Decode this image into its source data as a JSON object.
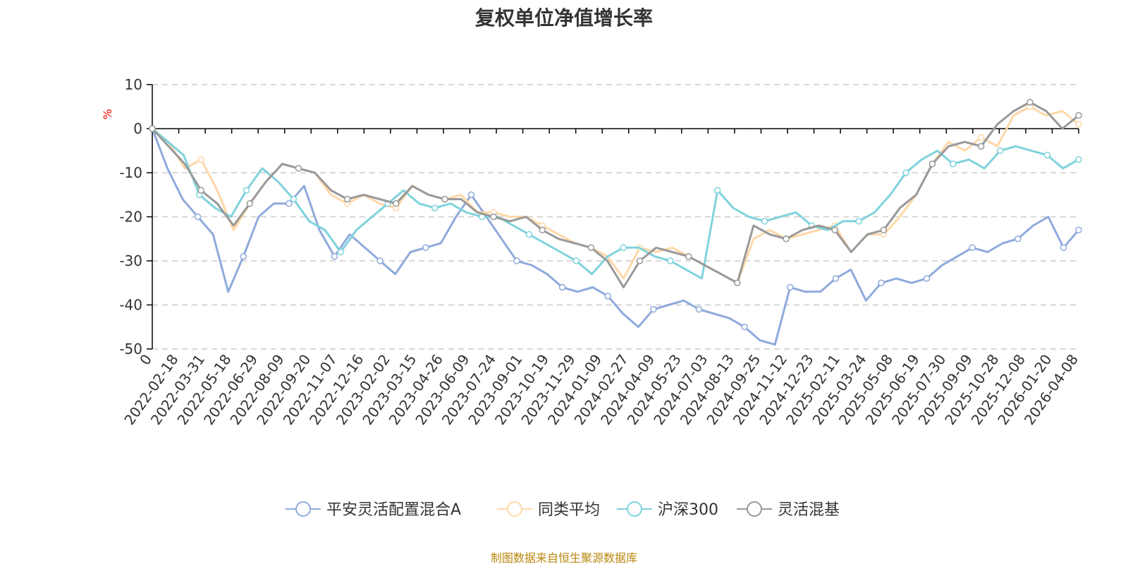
{
  "colors": {
    "title": "#333333",
    "axis": "#000000",
    "grid": "#cccccc",
    "unit": "#ff0000",
    "source": "#b8860b",
    "tick_text": "#333333"
  },
  "source_note": "制图数据来自恒生聚源数据库",
  "chart_data": {
    "type": "line",
    "title": "复权单位净值增长率",
    "ylabel": "%",
    "xlabel": "",
    "ylim": [
      -50,
      10
    ],
    "yticks": [
      10,
      0,
      -10,
      -20,
      -30,
      -40,
      -50
    ],
    "grid": true,
    "legend_position": "bottom-center",
    "x_ticks": [
      "0",
      "2022-02-18",
      "2022-03-31",
      "2022-05-18",
      "2022-06-29",
      "2022-08-09",
      "2022-09-20",
      "2022-11-07",
      "2022-12-16",
      "2023-02-02",
      "2023-03-15",
      "2023-04-26",
      "2023-06-09",
      "2023-07-24",
      "2023-09-01",
      "2023-10-19",
      "2023-11-29",
      "2024-01-09",
      "2024-02-27",
      "2024-04-09",
      "2024-05-23",
      "2024-07-03",
      "2024-08-13",
      "2024-09-25",
      "2024-11-12",
      "2024-12-23",
      "2025-02-11",
      "2025-03-24",
      "2025-05-08",
      "2025-06-19",
      "2025-07-30",
      "2025-09-09",
      "2025-10-28",
      "2025-12-08",
      "2026-01-20",
      "2026-04-08"
    ],
    "series": [
      {
        "name": "平安灵活配置混合A",
        "color": "#8faadc",
        "values": [
          0,
          -9,
          -16,
          -20,
          -24,
          -37,
          -29,
          -20,
          -17,
          -17,
          -13,
          -23,
          -29,
          -24,
          -27,
          -30,
          -33,
          -28,
          -27,
          -26,
          -20,
          -15,
          -20,
          -25,
          -30,
          -31,
          -33,
          -36,
          -37,
          -36,
          -38,
          -42,
          -45,
          -41,
          -40,
          -39,
          -41,
          -42,
          -43,
          -45,
          -48,
          -49,
          -36,
          -37,
          -37,
          -34,
          -32,
          -39,
          -35,
          -34,
          -35,
          -34,
          -31,
          -29,
          -27,
          -28,
          -26,
          -25,
          -22,
          -20,
          -27,
          -23
        ]
      },
      {
        "name": "同类平均",
        "color": "#ffd8a8",
        "values": [
          0,
          -3,
          -9,
          -7,
          -14,
          -23,
          -17,
          -12,
          -8,
          -9,
          -10,
          -15,
          -17,
          -15,
          -17,
          -18,
          -13,
          -15,
          -16,
          -15,
          -19,
          -19,
          -20,
          -20,
          -22,
          -24,
          -26,
          -27,
          -29,
          -34,
          -27,
          -28,
          -27,
          -29,
          -31,
          -33,
          -35,
          -25,
          -23,
          -25,
          -24,
          -23,
          -22,
          -28,
          -24,
          -24,
          -20,
          -15,
          -8,
          -3,
          -5,
          -2,
          -4,
          3,
          5,
          3,
          4,
          1
        ]
      },
      {
        "name": "沪深300",
        "color": "#7fd3dc",
        "values": [
          0,
          -3,
          -6,
          -15,
          -18,
          -20,
          -14,
          -9,
          -12,
          -16,
          -21,
          -23,
          -28,
          -23,
          -20,
          -17,
          -14,
          -17,
          -18,
          -17,
          -19,
          -20,
          -20,
          -22,
          -24,
          -26,
          -28,
          -30,
          -33,
          -29,
          -27,
          -27,
          -29,
          -30,
          -32,
          -34,
          -14,
          -18,
          -20,
          -21,
          -20,
          -19,
          -22,
          -23,
          -21,
          -21,
          -19,
          -15,
          -10,
          -7,
          -5,
          -8,
          -7,
          -9,
          -5,
          -4,
          -5,
          -6,
          -9,
          -7
        ]
      },
      {
        "name": "灵活混基",
        "color": "#999999",
        "values": [
          0,
          -4,
          -8,
          -14,
          -17,
          -22,
          -17,
          -12,
          -8,
          -9,
          -10,
          -14,
          -16,
          -15,
          -16,
          -17,
          -13,
          -15,
          -16,
          -16,
          -19,
          -20,
          -21,
          -20,
          -23,
          -25,
          -26,
          -27,
          -30,
          -36,
          -30,
          -27,
          -28,
          -29,
          -31,
          -33,
          -35,
          -22,
          -24,
          -25,
          -23,
          -22,
          -23,
          -28,
          -24,
          -23,
          -18,
          -15,
          -8,
          -4,
          -3,
          -4,
          1,
          4,
          6,
          4,
          0,
          3
        ]
      }
    ]
  }
}
